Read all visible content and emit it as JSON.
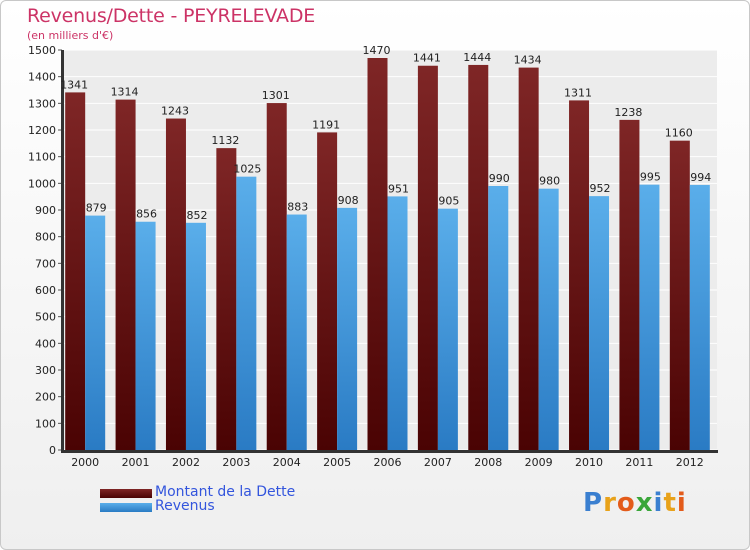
{
  "header": {
    "title": "Revenus/Dette - PEYRELEVADE",
    "subtitle": "(en milliers d'€)"
  },
  "colors": {
    "debt": "#6b1010",
    "revenue": "#3d8fd6",
    "title": "#cc3366",
    "legend_text": "#3355dd"
  },
  "logo": {
    "text": "Proxiti"
  },
  "chart_data": {
    "type": "bar",
    "title": "Revenus/Dette - PEYRELEVADE",
    "subtitle": "(en milliers d'€)",
    "xlabel": "",
    "ylabel": "",
    "categories": [
      "2000",
      "2001",
      "2002",
      "2003",
      "2004",
      "2005",
      "2006",
      "2007",
      "2008",
      "2009",
      "2010",
      "2011",
      "2012"
    ],
    "series": [
      {
        "name": "Montant de la Dette",
        "values": [
          1341,
          1314,
          1243,
          1132,
          1301,
          1191,
          1470,
          1441,
          1444,
          1434,
          1311,
          1238,
          1160
        ]
      },
      {
        "name": "Revenus",
        "values": [
          879,
          856,
          852,
          1025,
          883,
          908,
          951,
          905,
          990,
          980,
          952,
          995,
          994
        ]
      }
    ],
    "ylim": [
      0,
      1500
    ],
    "yticks": [
      0,
      100,
      200,
      300,
      400,
      500,
      600,
      700,
      800,
      900,
      1000,
      1100,
      1200,
      1300,
      1400,
      1500
    ],
    "grid": true,
    "legend_position": "bottom-left"
  }
}
